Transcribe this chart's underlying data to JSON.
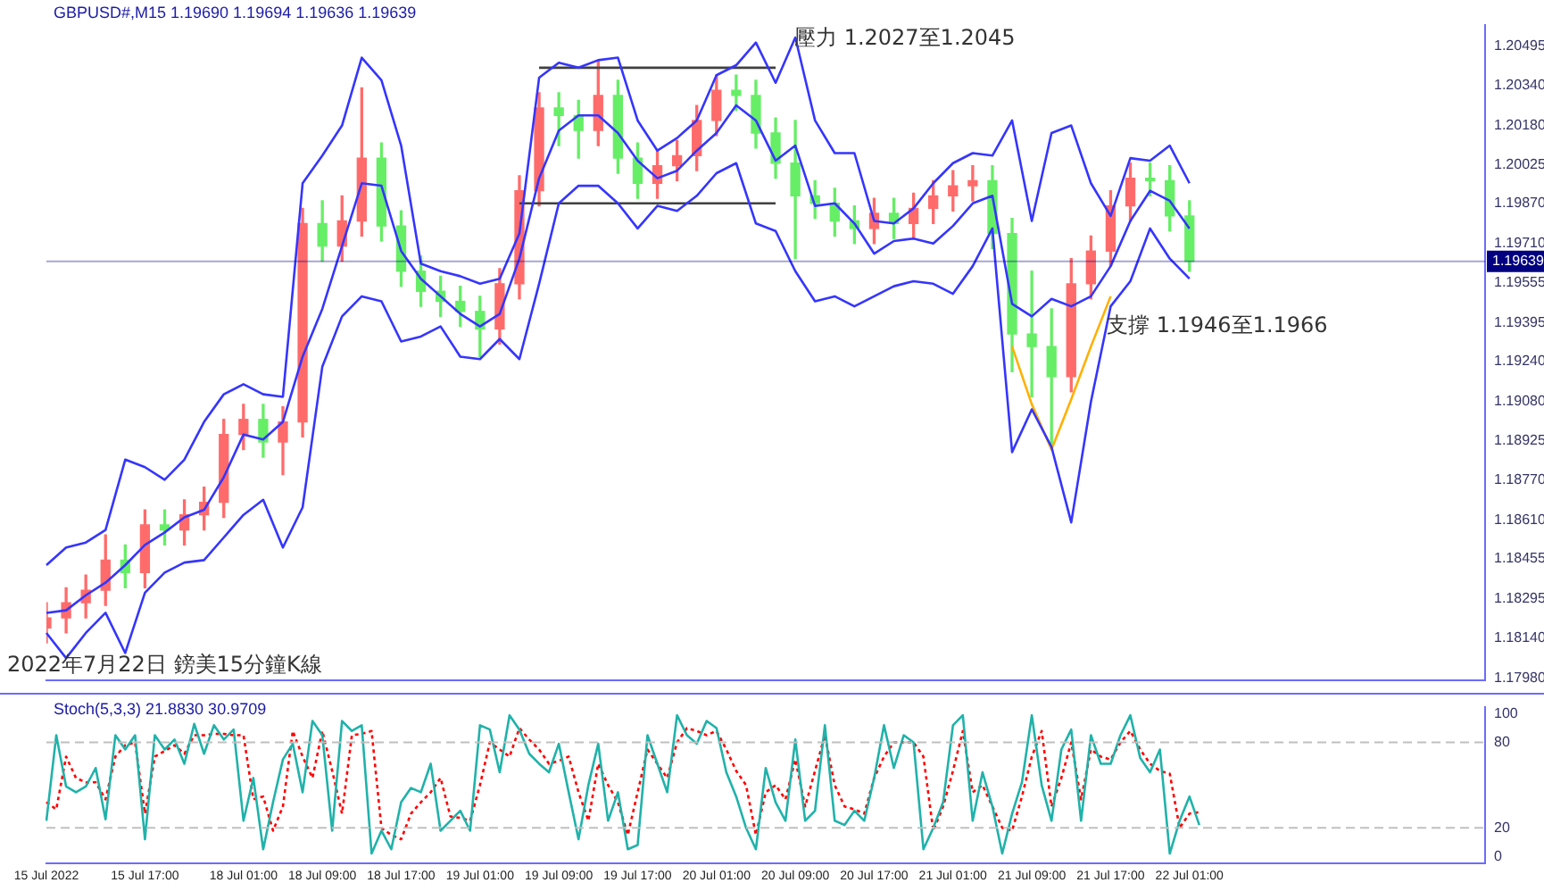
{
  "chart_data": [
    {
      "type": "candlestick",
      "title": "GBPUSD#,M15  1.19690 1.19694 1.19636 1.19639",
      "categories": [
        null,
        null,
        null,
        null,
        null,
        null,
        null,
        null,
        null,
        null,
        null,
        null,
        null,
        null,
        null,
        null,
        null,
        null,
        null,
        null,
        null,
        null,
        null,
        null,
        null,
        null,
        null,
        null,
        null,
        null,
        null,
        null,
        null,
        null,
        null,
        null,
        null,
        null,
        null,
        null,
        null,
        null,
        null,
        null,
        null,
        null,
        null,
        null,
        null,
        null,
        null,
        null,
        null,
        null,
        null,
        null,
        null,
        null,
        null,
        null,
        null,
        null,
        null,
        null,
        null,
        null,
        null,
        null,
        null,
        null,
        null,
        null,
        null,
        null
      ],
      "ohlc": [
        [
          1.1818,
          1.1828,
          1.1812,
          1.1822
        ],
        [
          1.1822,
          1.1834,
          1.1816,
          1.1828
        ],
        [
          1.1828,
          1.1839,
          1.1822,
          1.1833
        ],
        [
          1.1833,
          1.1855,
          1.1827,
          1.1845
        ],
        [
          1.1845,
          1.1851,
          1.1834,
          1.184
        ],
        [
          1.184,
          1.1865,
          1.1834,
          1.1859
        ],
        [
          1.1859,
          1.1865,
          1.1851,
          1.1857
        ],
        [
          1.1857,
          1.1869,
          1.1851,
          1.1863
        ],
        [
          1.1863,
          1.1874,
          1.1857,
          1.1868
        ],
        [
          1.1868,
          1.1901,
          1.1862,
          1.1895
        ],
        [
          1.1895,
          1.1907,
          1.1889,
          1.1901
        ],
        [
          1.1901,
          1.1907,
          1.1886,
          1.1892
        ],
        [
          1.1892,
          1.1906,
          1.1879,
          1.19
        ],
        [
          1.19,
          1.1985,
          1.1894,
          1.1979
        ],
        [
          1.1979,
          1.1988,
          1.1964,
          1.197
        ],
        [
          1.197,
          1.199,
          1.1964,
          1.198
        ],
        [
          1.198,
          1.2033,
          1.1974,
          1.2005
        ],
        [
          1.2005,
          1.2011,
          1.1972,
          1.1978
        ],
        [
          1.1978,
          1.1984,
          1.1954,
          1.196
        ],
        [
          1.196,
          1.1966,
          1.1946,
          1.1952
        ],
        [
          1.1952,
          1.1958,
          1.1942,
          1.1948
        ],
        [
          1.1948,
          1.1954,
          1.1938,
          1.1944
        ],
        [
          1.1944,
          1.195,
          1.1926,
          1.1937
        ],
        [
          1.1937,
          1.1961,
          1.1931,
          1.1955
        ],
        [
          1.1955,
          1.1998,
          1.1949,
          1.1992
        ],
        [
          1.1992,
          1.2031,
          1.1986,
          1.2025
        ],
        [
          1.2025,
          1.2031,
          1.201,
          1.2022
        ],
        [
          1.2022,
          1.2028,
          1.2005,
          1.2016
        ],
        [
          1.2016,
          1.2044,
          1.201,
          1.203
        ],
        [
          1.203,
          1.2036,
          1.1999,
          1.2005
        ],
        [
          1.2005,
          1.2011,
          1.1989,
          1.1995
        ],
        [
          1.1995,
          1.2008,
          1.1989,
          1.2002
        ],
        [
          1.2002,
          1.2012,
          1.1996,
          1.2006
        ],
        [
          1.2006,
          1.2026,
          1.2,
          1.202
        ],
        [
          1.202,
          1.2038,
          1.2014,
          1.2032
        ],
        [
          1.2032,
          1.2038,
          1.2024,
          1.203
        ],
        [
          1.203,
          1.2036,
          1.2009,
          1.2015
        ],
        [
          1.2015,
          1.2021,
          1.1997,
          1.2003
        ],
        [
          1.2003,
          1.202,
          1.1965,
          1.199
        ],
        [
          1.199,
          1.1996,
          1.1981,
          1.1987
        ],
        [
          1.1987,
          1.1993,
          1.1974,
          1.198
        ],
        [
          1.198,
          1.1986,
          1.1971,
          1.1977
        ],
        [
          1.1977,
          1.1989,
          1.1971,
          1.1983
        ],
        [
          1.1983,
          1.1989,
          1.1973,
          1.1979
        ],
        [
          1.1979,
          1.1991,
          1.1973,
          1.1985
        ],
        [
          1.1985,
          1.1996,
          1.1979,
          1.199
        ],
        [
          1.199,
          1.2,
          1.1984,
          1.1994
        ],
        [
          1.1994,
          1.2002,
          1.1988,
          1.1996
        ],
        [
          1.1996,
          1.2002,
          1.1969,
          1.1975
        ],
        [
          1.1975,
          1.1981,
          1.192,
          1.1935
        ],
        [
          1.1935,
          1.196,
          1.191,
          1.193
        ],
        [
          1.193,
          1.1945,
          1.1891,
          1.1918
        ],
        [
          1.1918,
          1.1965,
          1.1912,
          1.1955
        ],
        [
          1.1955,
          1.1974,
          1.1949,
          1.1968
        ],
        [
          1.1968,
          1.1992,
          1.1962,
          1.1986
        ],
        [
          1.1986,
          1.2003,
          1.198,
          1.1997
        ],
        [
          1.1997,
          1.2003,
          1.199,
          1.1996
        ],
        [
          1.1996,
          1.2002,
          1.1976,
          1.1982
        ],
        [
          1.1982,
          1.1988,
          1.196,
          1.19639
        ],
        null,
        null,
        null,
        null,
        null,
        null,
        null,
        null,
        null,
        null,
        null,
        null,
        null,
        null,
        null
      ],
      "colors": [
        "#ff6b6b",
        "#ff6b6b",
        "#ff6b6b",
        "#ff6b6b",
        "#66ee66",
        "#ff6b6b",
        "#66ee66",
        "#ff6b6b",
        "#ff6b6b",
        "#ff6b6b",
        "#ff6b6b",
        "#66ee66",
        "#ff6b6b",
        "#ff6b6b",
        "#66ee66",
        "#ff6b6b",
        "#ff6b6b",
        "#66ee66",
        "#66ee66",
        "#66ee66",
        "#66ee66",
        "#66ee66",
        "#66ee66",
        "#ff6b6b",
        "#ff6b6b",
        "#ff6b6b",
        "#66ee66",
        "#66ee66",
        "#ff6b6b",
        "#66ee66",
        "#66ee66",
        "#ff6b6b",
        "#ff6b6b",
        "#ff6b6b",
        "#ff6b6b",
        "#66ee66",
        "#66ee66",
        "#66ee66",
        "#66ee66",
        "#66ee66",
        "#66ee66",
        "#66ee66",
        "#ff6b6b",
        "#66ee66",
        "#ff6b6b",
        "#ff6b6b",
        "#ff6b6b",
        "#ff6b6b",
        "#66ee66",
        "#66ee66",
        "#66ee66",
        "#66ee66",
        "#ff6b6b",
        "#ff6b6b",
        "#ff6b6b",
        "#ff6b6b",
        "#66ee66",
        "#66ee66",
        "#66ee66",
        null,
        null,
        null,
        null,
        null,
        null,
        null,
        null,
        null,
        null,
        null,
        null,
        null,
        null,
        null
      ],
      "series": [
        {
          "type": "line",
          "color": "#3535ff",
          "values": [
            1.1843,
            1.185,
            1.1852,
            1.1857,
            1.1885,
            1.1882,
            1.1877,
            1.1885,
            1.19,
            1.1911,
            1.1915,
            1.1911,
            1.191,
            1.1995,
            1.2006,
            1.2018,
            1.2045,
            1.2036,
            1.201,
            1.1963,
            1.196,
            1.1958,
            1.1955,
            1.1957,
            1.1975,
            1.2037,
            1.2043,
            1.2041,
            1.2044,
            1.2045,
            1.202,
            1.2008,
            1.2013,
            1.202,
            1.2038,
            1.2042,
            1.2051,
            1.2035,
            1.2053,
            1.202,
            1.2007,
            1.2007,
            1.198,
            1.1979,
            1.1985,
            1.1995,
            1.2003,
            1.2007,
            1.2006,
            1.202,
            1.198,
            1.2015,
            1.2018,
            1.1995,
            1.1982,
            1.2005,
            1.2004,
            1.201,
            1.1995,
            null,
            null,
            null,
            null,
            null,
            null,
            null,
            null,
            null,
            null,
            null,
            null,
            null,
            null,
            null
          ]
        },
        {
          "type": "line",
          "color": "#3535ff",
          "values": [
            1.1824,
            1.1825,
            1.1831,
            1.1836,
            1.1843,
            1.1851,
            1.1856,
            1.1862,
            1.1865,
            1.1878,
            1.1895,
            1.1893,
            1.19,
            1.1926,
            1.1945,
            1.197,
            1.1995,
            1.1994,
            1.1968,
            1.1957,
            1.195,
            1.1943,
            1.1938,
            1.1943,
            1.1965,
            1.1997,
            1.2016,
            1.2022,
            1.2022,
            1.2015,
            1.2004,
            1.1997,
            1.2,
            1.2008,
            1.2015,
            1.2026,
            1.202,
            1.2004,
            1.201,
            1.1986,
            1.1987,
            1.1979,
            1.1967,
            1.1972,
            1.1973,
            1.1971,
            1.1978,
            1.1987,
            1.199,
            1.1947,
            1.1942,
            1.1949,
            1.1946,
            1.195,
            1.1962,
            1.198,
            1.1992,
            1.1988,
            1.1977,
            null,
            null,
            null,
            null,
            null,
            null,
            null,
            null,
            null,
            null,
            null,
            null,
            null,
            null,
            null
          ]
        },
        {
          "type": "line",
          "color": "#3535ff",
          "values": [
            1.1816,
            1.1806,
            1.1816,
            1.1824,
            1.1808,
            1.1832,
            1.184,
            1.1844,
            1.1845,
            1.1854,
            1.1863,
            1.1869,
            1.185,
            1.1866,
            1.1922,
            1.1942,
            1.195,
            1.1948,
            1.1932,
            1.1934,
            1.1938,
            1.1926,
            1.1925,
            1.1933,
            1.1925,
            1.1955,
            1.1987,
            1.1994,
            1.1994,
            1.1987,
            1.1977,
            1.1986,
            1.1984,
            1.199,
            1.1999,
            1.2003,
            1.1979,
            1.1976,
            1.196,
            1.1948,
            1.195,
            1.1946,
            1.195,
            1.1954,
            1.1956,
            1.1955,
            1.1951,
            1.1962,
            1.1977,
            1.1888,
            1.1905,
            1.189,
            1.186,
            1.1908,
            1.1946,
            1.1956,
            1.1977,
            1.1965,
            1.1957,
            null,
            null,
            null,
            null,
            null,
            null,
            null,
            null,
            null,
            null,
            null,
            null,
            null,
            null,
            null
          ]
        },
        {
          "type": "line",
          "color": "#404040",
          "values": [
            null,
            null,
            null,
            null,
            null,
            null,
            null,
            null,
            null,
            null,
            null,
            null,
            null,
            null,
            null,
            null,
            null,
            null,
            null,
            null,
            null,
            null,
            null,
            null,
            null,
            1.2041,
            1.2041,
            1.2041,
            1.2041,
            1.2041,
            1.2041,
            1.2041,
            1.2041,
            1.2041,
            1.2041,
            1.2041,
            1.2041,
            1.2041,
            null,
            null,
            null,
            null,
            null,
            null,
            null,
            null,
            null,
            null,
            null,
            null,
            null,
            null,
            null,
            null,
            null,
            null,
            null,
            null,
            null,
            null,
            null,
            null,
            null,
            null,
            null,
            null,
            null,
            null,
            null,
            null,
            null,
            null,
            null,
            null
          ]
        },
        {
          "type": "line",
          "color": "#404040",
          "values": [
            null,
            null,
            null,
            null,
            null,
            null,
            null,
            null,
            null,
            null,
            null,
            null,
            null,
            null,
            null,
            null,
            null,
            null,
            null,
            null,
            null,
            null,
            null,
            null,
            1.1987,
            1.1987,
            1.1987,
            1.1987,
            1.1987,
            1.1987,
            1.1987,
            1.1987,
            1.1987,
            1.1987,
            1.1987,
            1.1987,
            1.1987,
            1.1987,
            null,
            null,
            null,
            null,
            null,
            null,
            null,
            null,
            null,
            null,
            null,
            null,
            null,
            null,
            null,
            null,
            null,
            null,
            null,
            null,
            null,
            null,
            null,
            null,
            null,
            null,
            null,
            null,
            null,
            null,
            null,
            null,
            null,
            null,
            null,
            null
          ]
        },
        {
          "type": "line",
          "color": "#ffb000",
          "values": [
            null,
            null,
            null,
            null,
            null,
            null,
            null,
            null,
            null,
            null,
            null,
            null,
            null,
            null,
            null,
            null,
            null,
            null,
            null,
            null,
            null,
            null,
            null,
            null,
            null,
            null,
            null,
            null,
            null,
            null,
            null,
            null,
            null,
            null,
            null,
            null,
            null,
            null,
            null,
            null,
            null,
            null,
            null,
            null,
            null,
            null,
            null,
            null,
            null,
            1.193,
            1.1907,
            1.1889,
            1.1909,
            1.193,
            1.195,
            null,
            null,
            null,
            null,
            null,
            null,
            null,
            null,
            null,
            null,
            null,
            null,
            null,
            null,
            null,
            null,
            null,
            null,
            null
          ]
        }
      ],
      "ylim": [
        1.1797,
        1.2058
      ],
      "yticks": [
        1.20495,
        {
          "value": 1.2034,
          "label": "1.20340"
        },
        {
          "value": 1.2018,
          "label": "1.20180"
        },
        1.20025,
        {
          "value": 1.1987,
          "label": "1.19870"
        },
        {
          "value": 1.1971,
          "label": "1.19710"
        },
        1.19555,
        1.19395,
        {
          "value": 1.1924,
          "label": "1.19240"
        },
        {
          "value": 1.1908,
          "label": "1.19080"
        },
        1.18925,
        {
          "value": 1.1877,
          "label": "1.18770"
        },
        {
          "value": 1.1861,
          "label": "1.18610"
        },
        1.18455,
        1.18295,
        {
          "value": 1.1814,
          "label": "1.18140"
        },
        {
          "value": 1.1798,
          "label": "1.17980"
        }
      ],
      "tick_labels": "y",
      "ref_lines": [
        {
          "axis": "y",
          "value": 1.19639,
          "label": "1.19639",
          "color": "#000080"
        }
      ],
      "annotations": [
        "壓力 1.2027至1.2045",
        "支撐 1.1946至1.1966",
        "2022年7月22日 鎊美15分鐘K線"
      ],
      "legend": false,
      "grid": false
    },
    {
      "type": "line",
      "title": "Stoch(5,3,3) 21.8830 30.9709",
      "categories": [
        "15 Jul 2022",
        null,
        null,
        null,
        null,
        null,
        null,
        null,
        null,
        null,
        "15 Jul 17:00",
        null,
        null,
        null,
        null,
        null,
        null,
        null,
        null,
        null,
        "18 Jul 01:00",
        null,
        null,
        null,
        null,
        null,
        null,
        null,
        "18 Jul 09:00",
        null,
        null,
        null,
        null,
        null,
        null,
        null,
        "18 Jul 17:00",
        null,
        null,
        null,
        null,
        null,
        null,
        null,
        "19 Jul 01:00",
        null,
        null,
        null,
        null,
        null,
        null,
        null,
        "19 Jul 09:00",
        null,
        null,
        null,
        null,
        null,
        null,
        null,
        "19 Jul 17:00",
        null,
        null,
        null,
        null,
        null,
        null,
        null,
        "20 Jul 01:00",
        null,
        null,
        null,
        null,
        null,
        null,
        null,
        "20 Jul 09:00",
        null,
        null,
        null,
        null,
        null,
        null,
        null,
        "20 Jul 17:00",
        null,
        null,
        null,
        null,
        null,
        null,
        null,
        "21 Jul 01:00",
        null,
        null,
        null,
        null,
        null,
        null,
        null,
        "21 Jul 09:00",
        null,
        null,
        null,
        null,
        null,
        null,
        null,
        "21 Jul 17:00",
        null,
        null,
        null,
        null,
        null,
        null,
        null,
        "22 Jul 01:00",
        null,
        null,
        null,
        null,
        null,
        null,
        null,
        null,
        null,
        null,
        null,
        null,
        null,
        null,
        null,
        null,
        null,
        null,
        null,
        null,
        null,
        null,
        null,
        null,
        null,
        null,
        null,
        null,
        null,
        null
      ],
      "series": [
        {
          "color": "#20b2aa",
          "line_style": "solid",
          "values": [
            25,
            85,
            49,
            45,
            49,
            62,
            26,
            85,
            75,
            85,
            12,
            85,
            75,
            82,
            65,
            93,
            72,
            92,
            82,
            89,
            25,
            55,
            5,
            38,
            68,
            79,
            45,
            95,
            85,
            18,
            95,
            88,
            92,
            2,
            18,
            5,
            38,
            48,
            45,
            65,
            18,
            25,
            32,
            18,
            92,
            89,
            59,
            99,
            89,
            72,
            65,
            59,
            79,
            45,
            12,
            50,
            79,
            25,
            45,
            5,
            8,
            85,
            65,
            45,
            99,
            85,
            79,
            95,
            90,
            59,
            42,
            20,
            5,
            62,
            38,
            25,
            82,
            25,
            32,
            92,
            25,
            22,
            32,
            25,
            55,
            92,
            62,
            85,
            80,
            5,
            20,
            38,
            92,
            99,
            25,
            59,
            35,
            2,
            30,
            52,
            99,
            50,
            25,
            75,
            89,
            25,
            85,
            65,
            65,
            85,
            99,
            69,
            59,
            75,
            2,
            25,
            42,
            22,
            null,
            null,
            null,
            null,
            null,
            null,
            null,
            null,
            null,
            null,
            null,
            null,
            null,
            null,
            null,
            null,
            null,
            null,
            null,
            null,
            null,
            null,
            null,
            null,
            null,
            null,
            null,
            null,
            null
          ]
        },
        {
          "color": "#ff0000",
          "line_style": "dotted",
          "values": [
            38,
            33,
            70,
            55,
            52,
            52,
            40,
            70,
            78,
            80,
            30,
            70,
            74,
            78,
            72,
            85,
            85,
            86,
            86,
            85,
            85,
            40,
            42,
            18,
            35,
            88,
            70,
            55,
            88,
            60,
            30,
            85,
            86,
            88,
            20,
            15,
            12,
            30,
            38,
            45,
            55,
            28,
            27,
            25,
            50,
            80,
            75,
            70,
            90,
            82,
            75,
            65,
            67,
            70,
            45,
            25,
            65,
            50,
            38,
            15,
            45,
            75,
            65,
            55,
            80,
            90,
            88,
            85,
            88,
            75,
            60,
            50,
            15,
            45,
            50,
            40,
            68,
            35,
            60,
            85,
            50,
            35,
            33,
            30,
            55,
            70,
            80,
            80,
            80,
            70,
            18,
            35,
            60,
            88,
            45,
            50,
            35,
            20,
            18,
            42,
            70,
            88,
            35,
            55,
            80,
            40,
            75,
            70,
            68,
            80,
            88,
            75,
            65,
            60,
            58,
            20,
            30,
            31,
            null,
            null,
            null,
            null,
            null,
            null,
            null,
            null,
            null,
            null,
            null,
            null,
            null,
            null,
            null,
            null,
            null,
            null,
            null,
            null,
            null,
            null,
            null,
            null,
            null,
            null,
            null,
            null,
            null
          ]
        }
      ],
      "ylim": [
        -5,
        105
      ],
      "yticks": [
        0,
        20,
        80,
        100
      ],
      "ref_lines": [
        {
          "axis": "y",
          "value": 20,
          "color": "#c0c0c0",
          "line_style": "dashed"
        },
        {
          "axis": "y",
          "value": 80,
          "color": "#c0c0c0",
          "line_style": "dashed"
        }
      ],
      "legend": false,
      "grid": false
    }
  ]
}
